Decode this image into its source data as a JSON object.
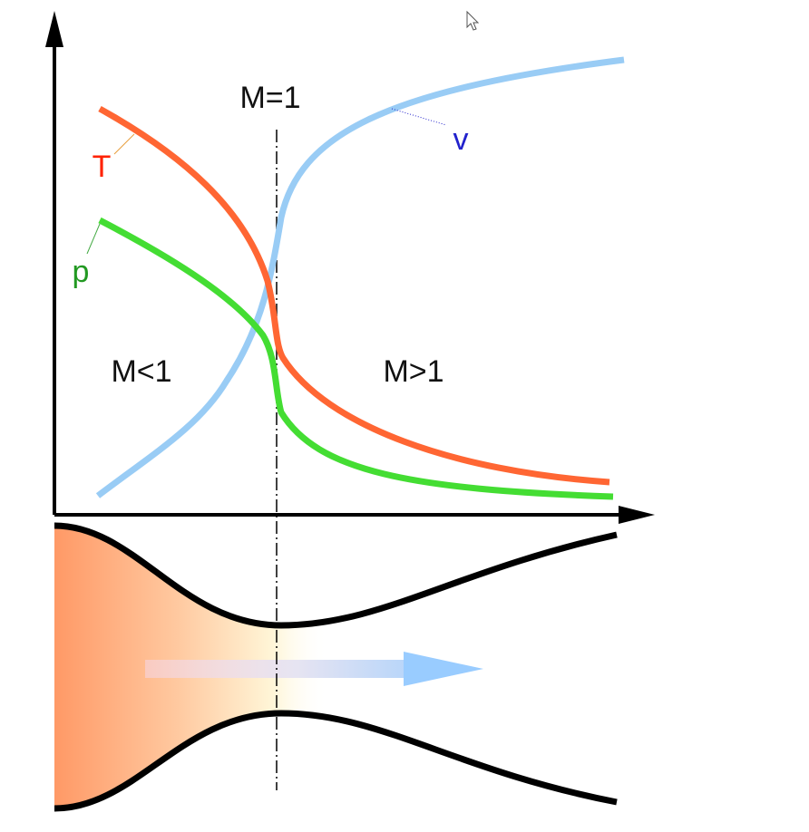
{
  "labels": {
    "throat": "M=1",
    "velocity": "v",
    "temperature": "T",
    "pressure": "p",
    "subsonic": "M<1",
    "supersonic": "M>1"
  }
}
